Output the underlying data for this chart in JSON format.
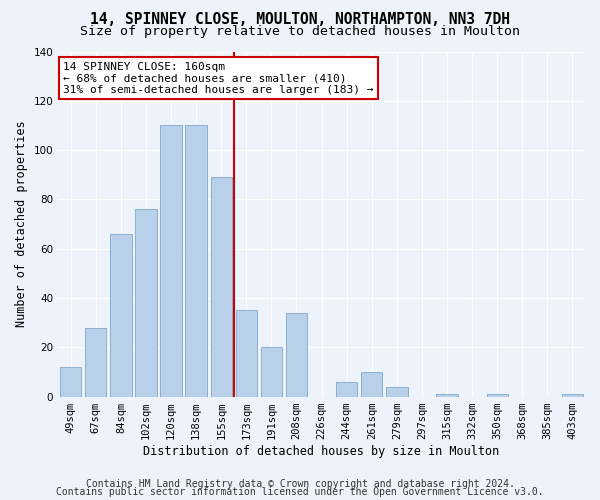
{
  "title1": "14, SPINNEY CLOSE, MOULTON, NORTHAMPTON, NN3 7DH",
  "title2": "Size of property relative to detached houses in Moulton",
  "xlabel": "Distribution of detached houses by size in Moulton",
  "ylabel": "Number of detached properties",
  "categories": [
    "49sqm",
    "67sqm",
    "84sqm",
    "102sqm",
    "120sqm",
    "138sqm",
    "155sqm",
    "173sqm",
    "191sqm",
    "208sqm",
    "226sqm",
    "244sqm",
    "261sqm",
    "279sqm",
    "297sqm",
    "315sqm",
    "332sqm",
    "350sqm",
    "368sqm",
    "385sqm",
    "403sqm"
  ],
  "values": [
    12,
    28,
    66,
    76,
    110,
    110,
    89,
    35,
    20,
    34,
    0,
    6,
    10,
    4,
    0,
    1,
    0,
    1,
    0,
    0,
    1
  ],
  "bar_color": "#b8d0ea",
  "bar_edge_color": "#8ab0d0",
  "vline_x": 6.5,
  "vline_color": "#cc0000",
  "annotation_line1": "14 SPINNEY CLOSE: 160sqm",
  "annotation_line2": "← 68% of detached houses are smaller (410)",
  "annotation_line3": "31% of semi-detached houses are larger (183) →",
  "annotation_box_color": "#ffffff",
  "annotation_box_edge_color": "#cc0000",
  "footer1": "Contains HM Land Registry data © Crown copyright and database right 2024.",
  "footer2": "Contains public sector information licensed under the Open Government Licence v3.0.",
  "bg_color": "#eef2fb",
  "grid_color": "#ffffff",
  "ylim": [
    0,
    140
  ],
  "title1_fontsize": 10.5,
  "title2_fontsize": 9.5,
  "axis_label_fontsize": 8.5,
  "tick_fontsize": 7.5,
  "footer_fontsize": 7.0,
  "ann_fontsize": 8.0
}
